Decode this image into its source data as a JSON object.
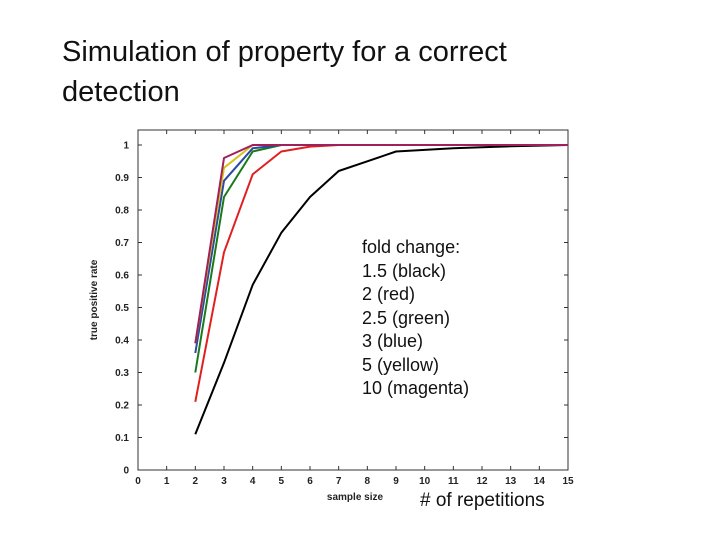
{
  "slide": {
    "title": "Simulation of property for a correct detection",
    "legend_lines": [
      "fold change:",
      "1.5 (black)",
      "2 (red)",
      "2.5 (green)",
      "3 (blue)",
      "5 (yellow)",
      "10 (magenta)"
    ],
    "footer_note": "# of repetitions"
  },
  "chart_data": {
    "type": "line",
    "title": "",
    "xlabel": "sample size",
    "ylabel": "true positive rate",
    "xlim": [
      0,
      15
    ],
    "ylim": [
      0,
      1.05
    ],
    "x_ticks": [
      0,
      1,
      2,
      3,
      4,
      5,
      6,
      7,
      8,
      9,
      10,
      11,
      12,
      13,
      14,
      15
    ],
    "y_ticks": [
      0,
      0.1,
      0.2,
      0.3,
      0.4,
      0.5,
      0.6,
      0.7,
      0.8,
      0.9,
      1
    ],
    "grid": false,
    "series": [
      {
        "name": "1.5",
        "color": "#000000",
        "x": [
          2,
          3,
          4,
          5,
          6,
          7,
          8,
          9,
          10,
          11,
          12,
          13,
          14,
          15
        ],
        "y": [
          0.11,
          0.33,
          0.57,
          0.73,
          0.84,
          0.92,
          0.95,
          0.98,
          0.985,
          0.99,
          0.993,
          0.996,
          0.998,
          1.0
        ]
      },
      {
        "name": "2",
        "color": "#e02020",
        "x": [
          2,
          3,
          4,
          5,
          6,
          7,
          8,
          9,
          10,
          15
        ],
        "y": [
          0.21,
          0.67,
          0.91,
          0.98,
          0.995,
          1.0,
          1.0,
          1.0,
          1.0,
          1.0
        ]
      },
      {
        "name": "2.5",
        "color": "#1a7a1a",
        "x": [
          2,
          3,
          4,
          5,
          6,
          15
        ],
        "y": [
          0.3,
          0.84,
          0.98,
          1.0,
          1.0,
          1.0
        ]
      },
      {
        "name": "3",
        "color": "#2a4aa0",
        "x": [
          2,
          3,
          4,
          5,
          15
        ],
        "y": [
          0.36,
          0.89,
          0.99,
          1.0,
          1.0
        ]
      },
      {
        "name": "5",
        "color": "#d8c020",
        "x": [
          2,
          3,
          4,
          5,
          15
        ],
        "y": [
          0.39,
          0.93,
          1.0,
          1.0,
          1.0
        ]
      },
      {
        "name": "10",
        "color": "#a0205a",
        "x": [
          2,
          3,
          4,
          5,
          15
        ],
        "y": [
          0.39,
          0.96,
          1.0,
          1.0,
          1.0
        ]
      }
    ]
  }
}
